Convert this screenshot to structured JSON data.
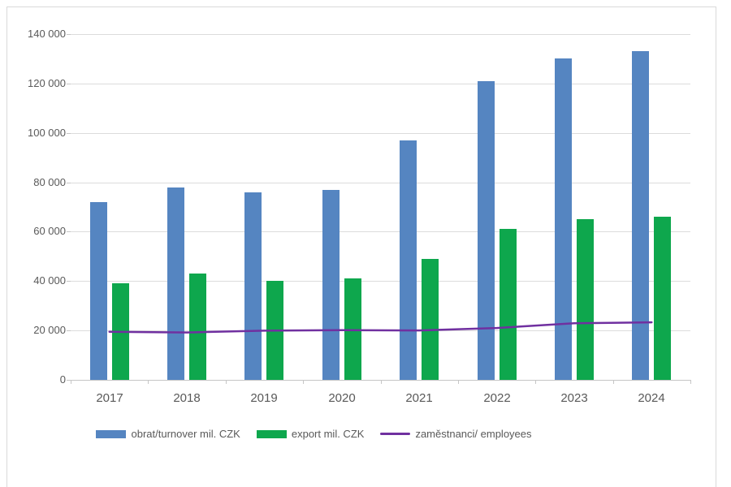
{
  "chart_data": {
    "type": "bar",
    "subtype": "grouped-bars-with-line",
    "title": "",
    "xlabel": "",
    "ylabel": "",
    "categories": [
      "2017",
      "2018",
      "2019",
      "2020",
      "2021",
      "2022",
      "2023",
      "2024"
    ],
    "series": [
      {
        "name": "obrat/turnover mil. CZK",
        "type": "bar",
        "color": "#5585C1",
        "values": [
          72000,
          78000,
          76000,
          77000,
          97000,
          121000,
          130000,
          133000
        ]
      },
      {
        "name": "export mil. CZK",
        "type": "bar",
        "color": "#0EA74D",
        "values": [
          39000,
          43000,
          40000,
          41000,
          49000,
          61000,
          65000,
          66000
        ]
      },
      {
        "name": "zaměstnanci/ employees",
        "type": "line",
        "color": "#7030A0",
        "values": [
          19500,
          19200,
          19900,
          20100,
          20000,
          21000,
          22900,
          23300
        ]
      }
    ],
    "ylim": [
      0,
      140000
    ],
    "ytick_step": 20000,
    "ytick_labels": [
      "0",
      "20 000",
      "40 000",
      "60 000",
      "80 000",
      "100 000",
      "120 000",
      "140 000"
    ],
    "grid": true,
    "legend_position": "bottom"
  },
  "style": {
    "gridline_color": "#DCDCDC",
    "axis_color": "#C6C6C6",
    "text_color": "#595959",
    "frame_border_color": "#D9D9D9",
    "background": "#ffffff"
  }
}
